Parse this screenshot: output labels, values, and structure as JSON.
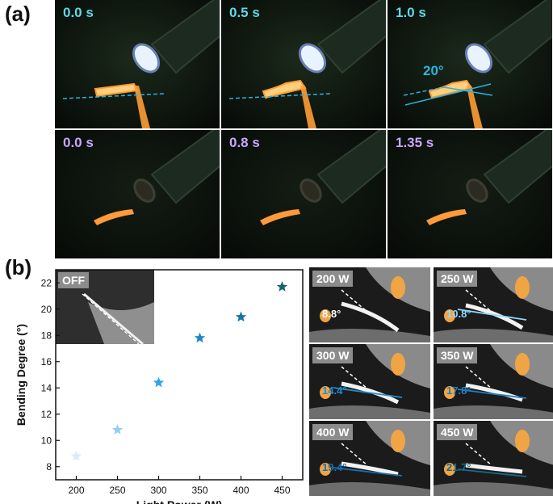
{
  "panel_labels": {
    "a": "(a)",
    "b": "(b)"
  },
  "panel_a": {
    "top_row": [
      {
        "time": "0.0 s"
      },
      {
        "time": "0.5 s"
      },
      {
        "time": "1.0 s",
        "angle": "20°"
      }
    ],
    "bottom_row": [
      {
        "time": "0.0 s"
      },
      {
        "time": "0.8 s"
      },
      {
        "time": "1.35 s"
      }
    ],
    "colors": {
      "top_time": "#5fd8e8",
      "bottom_time": "#c9a6ff",
      "flame": "#ffb45a",
      "guide_line": "#2ab3e0"
    }
  },
  "panel_b": {
    "inset_label": "OFF",
    "photos": [
      {
        "power": "200 W",
        "angle": "8.8°",
        "angle_color": "#ffffff"
      },
      {
        "power": "250 W",
        "angle": "10.8°",
        "angle_color": "#8fd8ff"
      },
      {
        "power": "300 W",
        "angle": "14.4°",
        "angle_color": "#1e8fd1"
      },
      {
        "power": "350 W",
        "angle": "17.8°",
        "angle_color": "#1e7fc4"
      },
      {
        "power": "400 W",
        "angle": "19.4°",
        "angle_color": "#1a6fb0"
      },
      {
        "power": "450 W",
        "angle": "21.7°",
        "angle_color": "#176a8a"
      }
    ]
  },
  "chart_data": {
    "type": "scatter",
    "xlabel": "Light Power (W)",
    "ylabel": "Bending Degree (°)",
    "xlim": [
      175,
      475
    ],
    "ylim": [
      7,
      23
    ],
    "xticks": [
      200,
      250,
      300,
      350,
      400,
      450
    ],
    "yticks": [
      8,
      10,
      12,
      14,
      16,
      18,
      20,
      22
    ],
    "marker": "star",
    "grid": false,
    "points": [
      {
        "x": 200,
        "y": 8.8,
        "color": "#d6ecfb"
      },
      {
        "x": 250,
        "y": 10.8,
        "color": "#8fd0f5"
      },
      {
        "x": 300,
        "y": 14.4,
        "color": "#2fa6e0"
      },
      {
        "x": 350,
        "y": 17.8,
        "color": "#1c88c6"
      },
      {
        "x": 400,
        "y": 19.4,
        "color": "#1872a6"
      },
      {
        "x": 450,
        "y": 21.7,
        "color": "#176470"
      }
    ]
  }
}
